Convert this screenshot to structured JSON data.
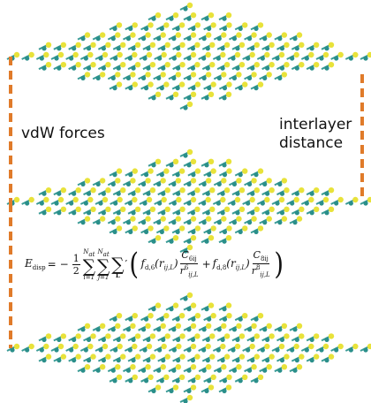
{
  "labels": {
    "left": "vdW forces",
    "right_line1": "interlayer",
    "right_line2": "distance"
  },
  "equation": {
    "lhs": "E",
    "lhs_sub": "disp",
    "equals": "=",
    "minus": "−",
    "half_num": "1",
    "half_den": "2",
    "sum1_top": "N",
    "sum1_top_sub": "at",
    "sum1_bot": "i=1",
    "sum2_top": "N",
    "sum2_top_sub": "at",
    "sum2_bot": "j=1",
    "sum3_bot": "L",
    "prime": "′",
    "term1_f": "f",
    "term1_f_sub": "d,6",
    "term1_arg": "(r",
    "term1_arg_sub": "ij,L",
    "term1_arg_close": ")",
    "term1_num": "C",
    "term1_num_sub": "6ij",
    "term1_den": "r",
    "term1_den_sup": "6",
    "term1_den_sub": "ij,L",
    "plus": "+",
    "term2_f": "f",
    "term2_f_sub": "d,8",
    "term2_arg": "(r",
    "term2_arg_sub": "ij,L",
    "term2_arg_close": ")",
    "term2_num": "C",
    "term2_num_sub": "8ij",
    "term2_den": "r",
    "term2_den_sup": "8",
    "term2_den_sub": "ij,L"
  },
  "colors": {
    "atom_yellow": "#e8e23a",
    "atom_teal": "#2a8f8a",
    "bond_teal": "#3a9b96",
    "dashed_line": "#e07b2a"
  }
}
